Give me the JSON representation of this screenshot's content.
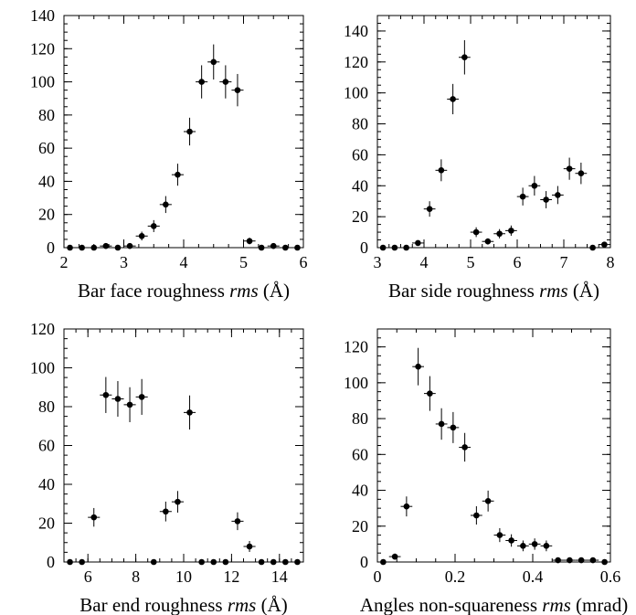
{
  "chart_data": [
    {
      "type": "scatter",
      "xlabel": {
        "pre": "Bar face roughness ",
        "italic": "rms",
        "post": " (Å)"
      },
      "xlim": [
        2,
        6
      ],
      "ylim": [
        0,
        140
      ],
      "xticks": [
        2,
        3,
        4,
        5,
        6
      ],
      "yticks": [
        0,
        20,
        40,
        60,
        80,
        100,
        120,
        140
      ],
      "points": [
        {
          "x": 2.1,
          "y": 0
        },
        {
          "x": 2.3,
          "y": 0
        },
        {
          "x": 2.5,
          "y": 0
        },
        {
          "x": 2.7,
          "y": 1
        },
        {
          "x": 2.9,
          "y": 0
        },
        {
          "x": 3.1,
          "y": 1
        },
        {
          "x": 3.3,
          "y": 7
        },
        {
          "x": 3.5,
          "y": 13
        },
        {
          "x": 3.7,
          "y": 26
        },
        {
          "x": 3.9,
          "y": 44
        },
        {
          "x": 4.1,
          "y": 70
        },
        {
          "x": 4.3,
          "y": 100
        },
        {
          "x": 4.5,
          "y": 112
        },
        {
          "x": 4.7,
          "y": 100
        },
        {
          "x": 4.9,
          "y": 95
        },
        {
          "x": 5.1,
          "y": 4
        },
        {
          "x": 5.3,
          "y": 0
        },
        {
          "x": 5.5,
          "y": 1
        },
        {
          "x": 5.7,
          "y": 0
        },
        {
          "x": 5.9,
          "y": 0
        }
      ]
    },
    {
      "type": "scatter",
      "xlabel": {
        "pre": "Bar side roughness ",
        "italic": "rms",
        "post": " (Å)"
      },
      "xlim": [
        3,
        8
      ],
      "ylim": [
        0,
        150
      ],
      "xticks": [
        3,
        4,
        5,
        6,
        7,
        8
      ],
      "yticks": [
        0,
        20,
        40,
        60,
        80,
        100,
        120,
        140
      ],
      "points": [
        {
          "x": 3.12,
          "y": 0
        },
        {
          "x": 3.37,
          "y": 0
        },
        {
          "x": 3.62,
          "y": 0
        },
        {
          "x": 3.87,
          "y": 3
        },
        {
          "x": 4.12,
          "y": 25
        },
        {
          "x": 4.37,
          "y": 50
        },
        {
          "x": 4.62,
          "y": 96
        },
        {
          "x": 4.87,
          "y": 123
        },
        {
          "x": 5.12,
          "y": 10
        },
        {
          "x": 5.37,
          "y": 4
        },
        {
          "x": 5.62,
          "y": 9
        },
        {
          "x": 5.87,
          "y": 11
        },
        {
          "x": 6.12,
          "y": 33
        },
        {
          "x": 6.37,
          "y": 40
        },
        {
          "x": 6.62,
          "y": 31
        },
        {
          "x": 6.87,
          "y": 34
        },
        {
          "x": 7.12,
          "y": 51
        },
        {
          "x": 7.37,
          "y": 48
        },
        {
          "x": 7.62,
          "y": 0
        },
        {
          "x": 7.87,
          "y": 2
        }
      ]
    },
    {
      "type": "scatter",
      "xlabel": {
        "pre": "Bar end roughness ",
        "italic": "rms",
        "post": "  (Å)"
      },
      "xlim": [
        5,
        15
      ],
      "ylim": [
        0,
        120
      ],
      "xticks": [
        6,
        8,
        10,
        12,
        14
      ],
      "yticks": [
        0,
        20,
        40,
        60,
        80,
        100,
        120
      ],
      "points": [
        {
          "x": 5.25,
          "y": 0
        },
        {
          "x": 5.75,
          "y": 0
        },
        {
          "x": 6.25,
          "y": 23
        },
        {
          "x": 6.75,
          "y": 86
        },
        {
          "x": 7.25,
          "y": 84
        },
        {
          "x": 7.75,
          "y": 81
        },
        {
          "x": 8.25,
          "y": 85
        },
        {
          "x": 8.75,
          "y": 0
        },
        {
          "x": 9.25,
          "y": 26
        },
        {
          "x": 9.75,
          "y": 31
        },
        {
          "x": 10.25,
          "y": 77
        },
        {
          "x": 10.75,
          "y": 0
        },
        {
          "x": 11.25,
          "y": 0
        },
        {
          "x": 11.75,
          "y": 0
        },
        {
          "x": 12.25,
          "y": 21
        },
        {
          "x": 12.75,
          "y": 8
        },
        {
          "x": 13.25,
          "y": 0
        },
        {
          "x": 13.75,
          "y": 0
        },
        {
          "x": 14.25,
          "y": 0
        },
        {
          "x": 14.75,
          "y": 0
        }
      ]
    },
    {
      "type": "scatter",
      "xlabel": {
        "pre": "Angles non-squareness ",
        "italic": "rms",
        "post": " (mrad)"
      },
      "xlim": [
        0,
        0.6
      ],
      "ylim": [
        0,
        130
      ],
      "xticks": [
        0,
        0.2,
        0.4,
        0.6
      ],
      "yticks": [
        0,
        20,
        40,
        60,
        80,
        100,
        120
      ],
      "points": [
        {
          "x": 0.015,
          "y": 0
        },
        {
          "x": 0.045,
          "y": 3
        },
        {
          "x": 0.075,
          "y": 31
        },
        {
          "x": 0.105,
          "y": 109
        },
        {
          "x": 0.135,
          "y": 94
        },
        {
          "x": 0.165,
          "y": 77
        },
        {
          "x": 0.195,
          "y": 75
        },
        {
          "x": 0.225,
          "y": 64
        },
        {
          "x": 0.255,
          "y": 26
        },
        {
          "x": 0.285,
          "y": 34
        },
        {
          "x": 0.315,
          "y": 15
        },
        {
          "x": 0.345,
          "y": 12
        },
        {
          "x": 0.375,
          "y": 9
        },
        {
          "x": 0.405,
          "y": 10
        },
        {
          "x": 0.435,
          "y": 9
        },
        {
          "x": 0.465,
          "y": 1
        },
        {
          "x": 0.495,
          "y": 1
        },
        {
          "x": 0.525,
          "y": 1
        },
        {
          "x": 0.555,
          "y": 1
        },
        {
          "x": 0.585,
          "y": 0
        }
      ]
    }
  ]
}
